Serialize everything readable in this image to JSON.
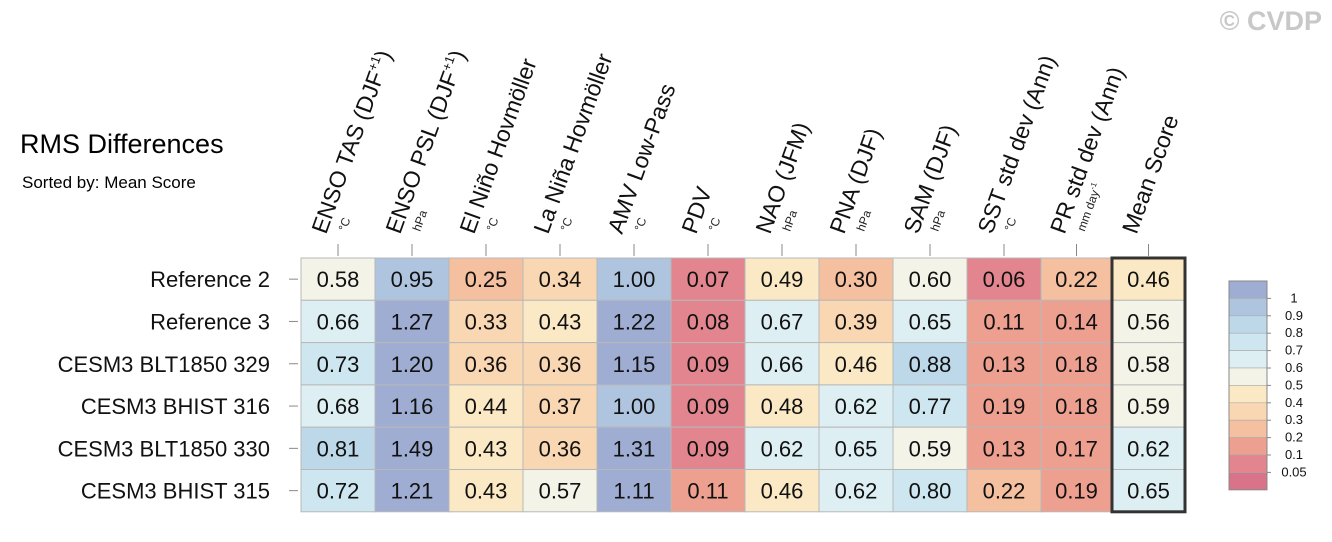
{
  "chart_data": {
    "type": "heatmap",
    "title": "RMS Differences",
    "subtitle": "Sorted by: Mean Score",
    "watermark": "© CVDP",
    "columns": [
      {
        "label": "ENSO TAS (DJF",
        "sup": "+1",
        "close": ")",
        "unit": "°C"
      },
      {
        "label": "ENSO PSL (DJF",
        "sup": "+1",
        "close": ")",
        "unit": "hPa"
      },
      {
        "label": "El Niño Hovmöller",
        "unit": "°C"
      },
      {
        "label": "La Niña Hovmöller",
        "unit": "°C"
      },
      {
        "label": "AMV Low-Pass",
        "unit": "°C"
      },
      {
        "label": "PDV",
        "unit": "°C"
      },
      {
        "label": "NAO (JFM)",
        "unit": "hPa"
      },
      {
        "label": "PNA (DJF)",
        "unit": "hPa"
      },
      {
        "label": "SAM (DJF)",
        "unit": "hPa"
      },
      {
        "label": "SST std dev (Ann)",
        "unit": "°C"
      },
      {
        "label": "PR std dev (Ann)",
        "unit": "mm day",
        "unit_sup": "-1"
      },
      {
        "label": "Mean Score",
        "unit": ""
      }
    ],
    "rows": [
      "Reference 2",
      "Reference 3",
      "CESM3 BLT1850 329",
      "CESM3 BHIST 316",
      "CESM3 BLT1850 330",
      "CESM3 BHIST 315"
    ],
    "values": [
      [
        "0.58",
        "0.95",
        "0.25",
        "0.34",
        "1.00",
        "0.07",
        "0.49",
        "0.30",
        "0.60",
        "0.06",
        "0.22",
        "0.46"
      ],
      [
        "0.66",
        "1.27",
        "0.33",
        "0.43",
        "1.22",
        "0.08",
        "0.67",
        "0.39",
        "0.65",
        "0.11",
        "0.14",
        "0.56"
      ],
      [
        "0.73",
        "1.20",
        "0.36",
        "0.36",
        "1.15",
        "0.09",
        "0.66",
        "0.46",
        "0.88",
        "0.13",
        "0.18",
        "0.58"
      ],
      [
        "0.68",
        "1.16",
        "0.44",
        "0.37",
        "1.00",
        "0.09",
        "0.48",
        "0.62",
        "0.77",
        "0.19",
        "0.18",
        "0.59"
      ],
      [
        "0.81",
        "1.49",
        "0.43",
        "0.36",
        "1.31",
        "0.09",
        "0.62",
        "0.65",
        "0.59",
        "0.13",
        "0.17",
        "0.62"
      ],
      [
        "0.72",
        "1.21",
        "0.43",
        "0.57",
        "1.11",
        "0.11",
        "0.46",
        "0.62",
        "0.80",
        "0.22",
        "0.19",
        "0.65"
      ]
    ],
    "colorbar": {
      "levels": [
        "1",
        "0.9",
        "0.8",
        "0.7",
        "0.6",
        "0.5",
        "0.4",
        "0.3",
        "0.2",
        "0.1",
        "0.05"
      ],
      "colors": [
        "#9fadd3",
        "#aec4df",
        "#bdd8e9",
        "#cde6f0",
        "#deeff3",
        "#f3f3e8",
        "#fbe9c5",
        "#f9d7b2",
        "#f5c0a0",
        "#eea090",
        "#e2858f",
        "#d8738a"
      ]
    }
  }
}
